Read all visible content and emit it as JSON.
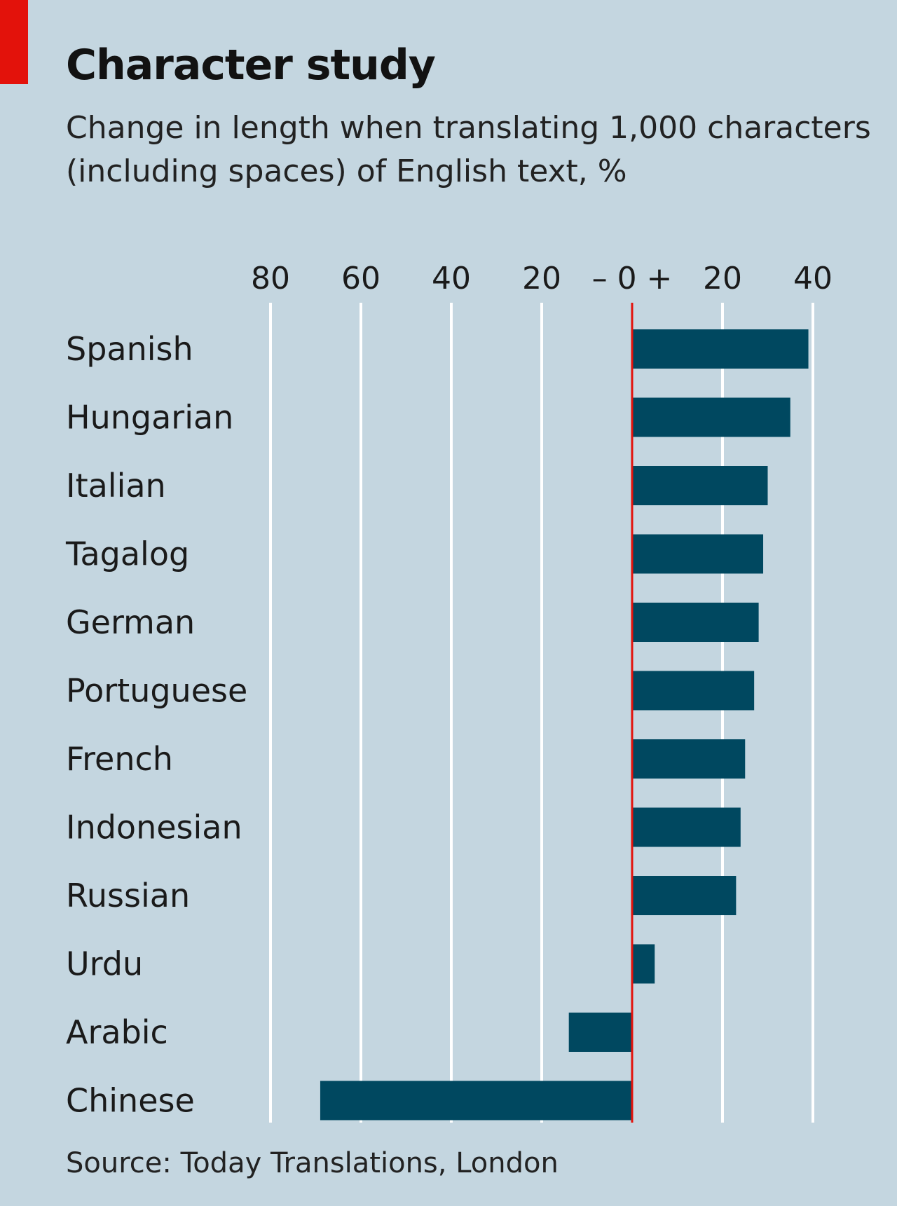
{
  "title": "Character study",
  "subtitle": "Change in length when translating 1,000 characters (including spaces) of English text, %",
  "source": "Source: Today Translations, London",
  "colors": {
    "background": "#c4d6e0",
    "bar": "#004860",
    "gridline": "#ffffff",
    "zero_line": "#e3120b",
    "red_tag": "#e3120b"
  },
  "chart_data": {
    "type": "bar",
    "orientation": "horizontal",
    "categories": [
      "Spanish",
      "Hungarian",
      "Italian",
      "Tagalog",
      "German",
      "Portuguese",
      "French",
      "Indonesian",
      "Russian",
      "Urdu",
      "Arabic",
      "Chinese"
    ],
    "values": [
      39,
      35,
      30,
      29,
      28,
      27,
      25,
      24,
      23,
      5,
      -14,
      -69
    ],
    "xlim": [
      -80,
      40
    ],
    "tick_values": [
      -80,
      -60,
      -40,
      -20,
      0,
      20,
      40
    ],
    "tick_labels": [
      "80",
      "60",
      "40",
      "20",
      "– 0 +",
      "20",
      "40"
    ],
    "grid": true
  }
}
